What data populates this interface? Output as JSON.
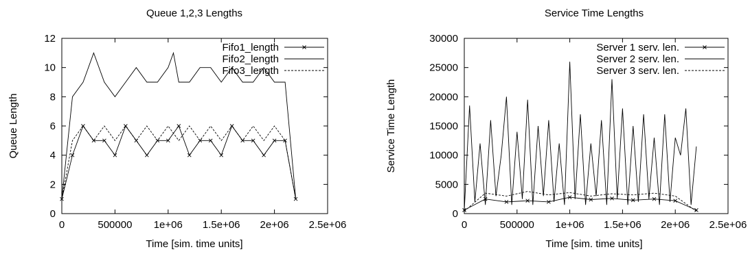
{
  "chart_data": [
    {
      "type": "line",
      "title": "Queue 1,2,3 Lengths",
      "xlabel": "Time [sim. time units]",
      "ylabel": "Queue Length",
      "xlim": [
        0,
        2500000
      ],
      "ylim": [
        0,
        12
      ],
      "x_ticks": [
        0,
        500000,
        1000000,
        1500000,
        2000000,
        2500000
      ],
      "x_tick_labels": [
        "0",
        "500000",
        "1e+06",
        "1.5e+06",
        "2e+06",
        "2.5e+06"
      ],
      "y_ticks": [
        0,
        2,
        4,
        6,
        8,
        10,
        12
      ],
      "y_tick_labels": [
        "0",
        "2",
        "4",
        "6",
        "8",
        "10",
        "12"
      ],
      "legend_position": "top-right",
      "series": [
        {
          "name": "Fifo1_length",
          "style": "points-line",
          "color": "#000000",
          "x": [
            0,
            100000,
            200000,
            300000,
            400000,
            500000,
            600000,
            700000,
            800000,
            900000,
            1000000,
            1100000,
            1200000,
            1300000,
            1400000,
            1500000,
            1600000,
            1700000,
            1800000,
            1900000,
            2000000,
            2100000,
            2200000
          ],
          "values": [
            1,
            4,
            6,
            5,
            5,
            4,
            6,
            5,
            4,
            5,
            5,
            6,
            4,
            5,
            5,
            4,
            6,
            5,
            5,
            4,
            5,
            5,
            1
          ]
        },
        {
          "name": "Fifo2_length",
          "style": "solid",
          "color": "#000000",
          "x": [
            0,
            100000,
            200000,
            250000,
            300000,
            400000,
            500000,
            600000,
            700000,
            800000,
            900000,
            1000000,
            1050000,
            1100000,
            1200000,
            1300000,
            1400000,
            1500000,
            1600000,
            1700000,
            1800000,
            1900000,
            2000000,
            2100000,
            2200000
          ],
          "values": [
            1,
            8,
            9,
            10,
            11,
            9,
            8,
            9,
            10,
            9,
            9,
            10,
            11,
            9,
            9,
            10,
            10,
            9,
            10,
            9,
            9,
            10,
            9,
            9,
            1
          ]
        },
        {
          "name": "Fifo3_length",
          "style": "dashed",
          "color": "#000000",
          "x": [
            0,
            100000,
            200000,
            300000,
            400000,
            500000,
            600000,
            700000,
            800000,
            900000,
            1000000,
            1100000,
            1200000,
            1300000,
            1400000,
            1500000,
            1600000,
            1700000,
            1800000,
            1900000,
            2000000,
            2100000,
            2200000
          ],
          "values": [
            1,
            5,
            6,
            5,
            6,
            5,
            6,
            5,
            6,
            5,
            6,
            5,
            6,
            5,
            6,
            5,
            6,
            5,
            6,
            5,
            6,
            5,
            1
          ]
        }
      ]
    },
    {
      "type": "line",
      "title": "Service Time Lengths",
      "xlabel": "Time [sim. time units]",
      "ylabel": "Service Time Length",
      "xlim": [
        0,
        2500000
      ],
      "ylim": [
        0,
        30000
      ],
      "x_ticks": [
        0,
        500000,
        1000000,
        1500000,
        2000000,
        2500000
      ],
      "x_tick_labels": [
        "0",
        "500000",
        "1e+06",
        "1.5e+06",
        "2e+06",
        "2.5e+06"
      ],
      "y_ticks": [
        0,
        5000,
        10000,
        15000,
        20000,
        25000,
        30000
      ],
      "y_tick_labels": [
        "0",
        "5000",
        "10000",
        "15000",
        "20000",
        "25000",
        "30000"
      ],
      "legend_position": "top-right",
      "series": [
        {
          "name": "Server 1 serv. len.",
          "style": "points-line",
          "color": "#000000",
          "x": [
            0,
            200000,
            400000,
            600000,
            800000,
            1000000,
            1200000,
            1400000,
            1600000,
            1800000,
            2000000,
            2200000
          ],
          "values": [
            600,
            2500,
            2000,
            2200,
            2000,
            2800,
            2400,
            2600,
            2300,
            2500,
            2200,
            600
          ]
        },
        {
          "name": "Server 2 serv. len.",
          "style": "solid",
          "color": "#000000",
          "x": [
            0,
            50000,
            100000,
            150000,
            200000,
            250000,
            300000,
            350000,
            400000,
            450000,
            500000,
            550000,
            600000,
            650000,
            700000,
            750000,
            800000,
            850000,
            900000,
            950000,
            1000000,
            1050000,
            1100000,
            1150000,
            1200000,
            1250000,
            1300000,
            1350000,
            1400000,
            1450000,
            1500000,
            1550000,
            1600000,
            1650000,
            1700000,
            1750000,
            1800000,
            1850000,
            1900000,
            1950000,
            2000000,
            2050000,
            2100000,
            2150000,
            2200000
          ],
          "values": [
            500,
            18500,
            2000,
            12000,
            1500,
            16000,
            3000,
            10000,
            20000,
            1500,
            14000,
            2500,
            19500,
            1500,
            15000,
            3000,
            16000,
            2000,
            12000,
            1500,
            26000,
            2500,
            17000,
            1500,
            12000,
            3000,
            16000,
            1500,
            23000,
            2500,
            18000,
            1500,
            15000,
            2000,
            17000,
            2500,
            13000,
            1500,
            17000,
            2000,
            13000,
            10000,
            18000,
            1500,
            11500
          ]
        },
        {
          "name": "Server 3 serv. len.",
          "style": "dashed",
          "color": "#000000",
          "x": [
            0,
            200000,
            400000,
            600000,
            800000,
            1000000,
            1200000,
            1400000,
            1600000,
            1800000,
            2000000,
            2200000
          ],
          "values": [
            400,
            3500,
            3000,
            3800,
            3200,
            3600,
            3000,
            3400,
            3200,
            3500,
            3000,
            400
          ]
        }
      ]
    }
  ]
}
